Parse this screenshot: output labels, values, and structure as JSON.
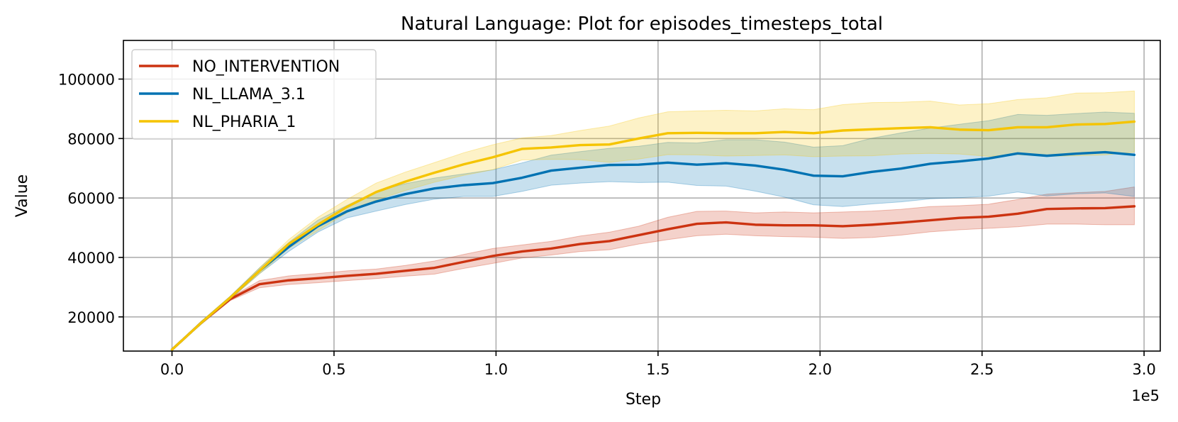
{
  "chart_data": {
    "type": "line",
    "title": "Natural Language: Plot for episodes_timesteps_total",
    "xlabel": "Step",
    "ylabel": "Value",
    "x_offset_label": "1e5",
    "xlim": [
      -0.15,
      3.05
    ],
    "ylim": [
      8500,
      113000
    ],
    "x_ticks": [
      0.0,
      0.5,
      1.0,
      1.5,
      2.0,
      2.5,
      3.0
    ],
    "x_tick_labels": [
      "0.0",
      "0.5",
      "1.0",
      "1.5",
      "2.0",
      "2.5",
      "3.0"
    ],
    "y_ticks": [
      20000,
      40000,
      60000,
      80000,
      100000
    ],
    "y_tick_labels": [
      "20000",
      "40000",
      "60000",
      "80000",
      "100000"
    ],
    "grid": true,
    "legend_position": "top-left",
    "x": [
      0.0,
      0.09,
      0.18,
      0.27,
      0.36,
      0.45,
      0.54,
      0.63,
      0.72,
      0.81,
      0.9,
      0.99,
      1.08,
      1.17,
      1.26,
      1.35,
      1.44,
      1.53,
      1.62,
      1.71,
      1.8,
      1.89,
      1.98,
      2.07,
      2.16,
      2.25,
      2.34,
      2.43,
      2.52,
      2.61,
      2.7,
      2.79,
      2.88,
      2.97
    ],
    "series": [
      {
        "name": "NO_INTERVENTION",
        "color": "#cc3311",
        "values": [
          9000,
          18000,
          26000,
          31000,
          32300,
          33000,
          33800,
          34500,
          35500,
          36500,
          38500,
          40500,
          42000,
          43000,
          44500,
          45500,
          47500,
          49500,
          51300,
          51800,
          51000,
          50800,
          50800,
          50500,
          51000,
          51700,
          52500,
          53300,
          53700,
          54700,
          56300,
          56500,
          56600,
          57200
        ],
        "upper": [
          9100,
          18500,
          26500,
          32200,
          33800,
          34600,
          35500,
          36100,
          37300,
          38800,
          41000,
          43000,
          44200,
          45400,
          47200,
          48500,
          50500,
          53500,
          55500,
          55600,
          55000,
          55300,
          55000,
          55300,
          55600,
          56200,
          57100,
          57400,
          57900,
          59500,
          61300,
          61800,
          62200,
          63700
        ],
        "lower": [
          8900,
          17500,
          25500,
          29800,
          30900,
          31500,
          32200,
          32900,
          33700,
          34400,
          36300,
          38000,
          39800,
          40800,
          42000,
          42600,
          44500,
          46000,
          47300,
          47800,
          47300,
          47000,
          46800,
          46400,
          46700,
          47500,
          48600,
          49300,
          49800,
          50300,
          51200,
          51200,
          51000,
          51000
        ]
      },
      {
        "name": "NL_LLAMA_3.1",
        "color": "#0072b2",
        "values": [
          9000,
          18000,
          26500,
          35500,
          43500,
          50500,
          55500,
          58800,
          61300,
          63200,
          64300,
          65000,
          66800,
          69200,
          70200,
          71100,
          71200,
          71900,
          71200,
          71700,
          70900,
          69500,
          67500,
          67300,
          68800,
          69900,
          71500,
          72300,
          73300,
          75000,
          74200,
          74900,
          75400,
          74500
        ],
        "upper": [
          9100,
          18500,
          27000,
          36500,
          45000,
          52500,
          57500,
          62200,
          64800,
          66700,
          68100,
          69500,
          71800,
          74400,
          75600,
          76700,
          77400,
          78700,
          78500,
          79600,
          79600,
          78800,
          77100,
          77600,
          80100,
          81900,
          83500,
          84800,
          86000,
          88100,
          87800,
          88400,
          88900,
          88500
        ],
        "lower": [
          8900,
          17500,
          26000,
          34500,
          42000,
          48500,
          53300,
          55600,
          57800,
          59600,
          60500,
          60500,
          62200,
          64300,
          65000,
          65500,
          65200,
          65300,
          64200,
          64000,
          62300,
          60300,
          57700,
          57100,
          58000,
          58700,
          59700,
          60100,
          60600,
          62000,
          60700,
          61400,
          61700,
          60500
        ]
      },
      {
        "name": "NL_PHARIA_1",
        "color": "#f5c400",
        "values": [
          9000,
          18000,
          26500,
          35500,
          44500,
          51000,
          57000,
          62000,
          65500,
          68500,
          71300,
          73700,
          76500,
          77000,
          77800,
          78000,
          80000,
          81800,
          81900,
          81800,
          81800,
          82200,
          81800,
          82700,
          83100,
          83500,
          83800,
          83000,
          82800,
          83800,
          83800,
          84700,
          84900,
          85700
        ],
        "upper": [
          9100,
          18500,
          27000,
          36500,
          46000,
          53500,
          59500,
          65000,
          68700,
          71900,
          75200,
          77900,
          80200,
          81000,
          82700,
          84200,
          86900,
          89000,
          89300,
          89500,
          89300,
          90000,
          89700,
          91400,
          92100,
          92200,
          92600,
          91300,
          91700,
          93100,
          93700,
          95300,
          95400,
          96000
        ],
        "lower": [
          8900,
          17500,
          26000,
          34500,
          43000,
          49000,
          55000,
          59300,
          62500,
          65300,
          67600,
          69500,
          72800,
          73000,
          72900,
          72000,
          73100,
          74600,
          74500,
          74100,
          74300,
          74500,
          73900,
          74100,
          74200,
          74800,
          75000,
          74800,
          74000,
          74600,
          74000,
          74200,
          74500,
          75400
        ]
      }
    ]
  }
}
